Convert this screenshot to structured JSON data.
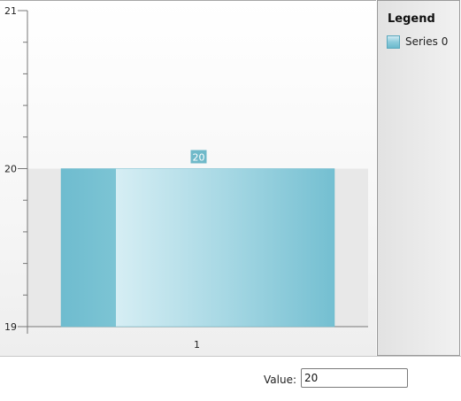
{
  "chart_data": {
    "type": "bar",
    "categories": [
      "1"
    ],
    "series": [
      {
        "name": "Series 0",
        "values": [
          20
        ]
      }
    ],
    "ylim": [
      19,
      21
    ],
    "yticks": [
      "19",
      "20",
      "21"
    ],
    "data_labels": [
      "20"
    ],
    "colors": {
      "bar": "#7cc4d4",
      "bar_light": "#d3edf3",
      "label_bg": "#6fb9c9"
    }
  },
  "legend": {
    "title": "Legend",
    "items": [
      {
        "label": "Series 0",
        "color": "#7cc4d4"
      }
    ]
  },
  "controls": {
    "value_label": "Value:",
    "value_input": "20"
  }
}
